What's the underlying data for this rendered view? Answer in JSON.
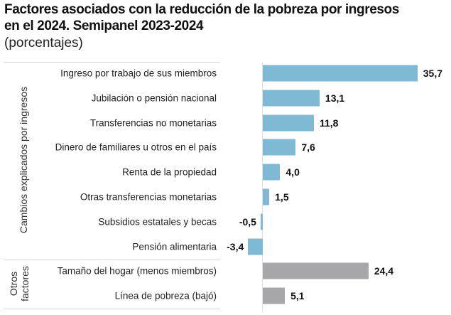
{
  "title_line1": "Factores asociados con la reducción de la pobreza por ingresos",
  "title_line2": "en el 2024. Semipanel 2023-2024",
  "subtitle": "(porcentajes)",
  "chart_data": {
    "type": "bar",
    "orientation": "horizontal",
    "title": "Factores asociados con la reducción de la pobreza por ingresos en el 2024. Semipanel 2023-2024",
    "subtitle": "(porcentajes)",
    "groups": [
      {
        "name": "Cambios explicados por ingresos",
        "color": "#80b9d3"
      },
      {
        "name_lines": [
          "Otros",
          "factores"
        ],
        "name": "Otros factores",
        "color": "#a7a7a9"
      }
    ],
    "categories": [
      "Ingreso por trabajo de sus miembros",
      "Jubilación o pensión nacional",
      "Transferencias no monetarias",
      "Dinero de familiares u otros  en el país",
      "Renta de la propiedad",
      "Otras transferencias monetarias",
      "Subsidios estatales y becas",
      "Pensión alimentaria",
      "Tamaño del hogar (menos miembros)",
      "Línea de pobreza (bajó)"
    ],
    "values": [
      35.7,
      13.1,
      11.8,
      7.6,
      4.0,
      1.5,
      -0.5,
      -3.4,
      24.4,
      5.1
    ],
    "value_labels": [
      "35,7",
      "13,1",
      "11,8",
      "7,6",
      "4,0",
      "1,5",
      "-0,5",
      "-3,4",
      "24,4",
      "5,1"
    ],
    "group_index": [
      0,
      0,
      0,
      0,
      0,
      0,
      0,
      0,
      1,
      1
    ],
    "grid": false,
    "legend": "none"
  }
}
